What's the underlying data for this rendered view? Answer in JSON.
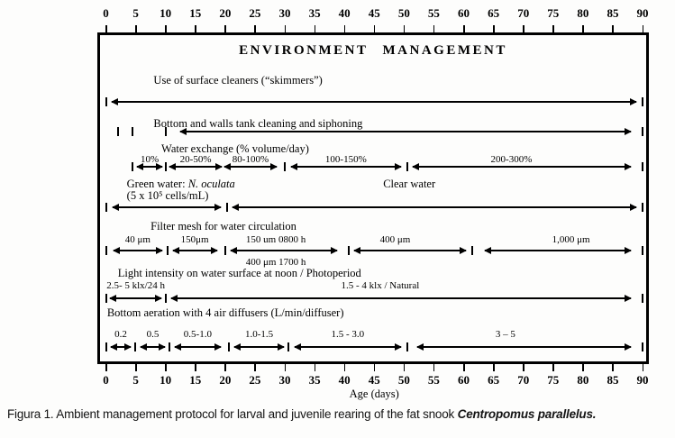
{
  "chart_data": {
    "type": "table",
    "title": "ENVIRONMENT MANAGEMENT",
    "xlabel": "Age (days)",
    "xlim": [
      0,
      90
    ],
    "x_ticks": [
      0,
      5,
      10,
      15,
      20,
      25,
      30,
      35,
      40,
      45,
      50,
      55,
      60,
      65,
      70,
      75,
      80,
      85,
      90
    ],
    "rows": [
      {
        "name": "surface-cleaners",
        "titles": [
          {
            "day": 8,
            "lines": [
              [
                {
                  "t": "Use of surface cleaners (“skimmers”)"
                }
              ]
            ]
          }
        ],
        "bars": [
          0,
          90
        ],
        "segments": [
          {
            "from": 1,
            "to": 89
          }
        ]
      },
      {
        "name": "tank-cleaning",
        "titles": [
          {
            "day": 8,
            "lines": [
              [
                {
                  "t": "Bottom and walls tank cleaning and siphoning"
                }
              ]
            ]
          }
        ],
        "bars": [
          2,
          4.5,
          10,
          90
        ],
        "segments": [
          {
            "from": 12.5,
            "to": 88
          }
        ]
      },
      {
        "name": "water-exchange",
        "titles": [
          {
            "day": 9.3,
            "lines": [
              [
                {
                  "t": "Water exchange (% volume/day)"
                }
              ]
            ]
          }
        ],
        "bars": [
          4.5,
          10,
          30,
          50.5,
          90
        ],
        "segments": [
          {
            "from": 5.2,
            "to": 9.5,
            "label": "10%"
          },
          {
            "from": 10.7,
            "to": 19.4,
            "label": "20-50%"
          },
          {
            "from": 19.8,
            "to": 28.7,
            "label": "80-100%"
          },
          {
            "from": 31,
            "to": 49.5,
            "label": "100-150%"
          },
          {
            "from": 51.5,
            "to": 88,
            "label": "200-300%",
            "label_day": 68
          }
        ]
      },
      {
        "name": "water-type",
        "titles": [
          {
            "day": 3.5,
            "lines": [
              [
                {
                  "t": "Green water: "
                },
                {
                  "t": "N. oculata",
                  "i": true
                }
              ],
              [
                {
                  "t": "(5 x 10⁵ cells/mL)"
                }
              ]
            ]
          },
          {
            "day": 46.5,
            "lines": [
              [
                {
                  "t": "Clear water"
                }
              ]
            ]
          }
        ],
        "bars": [
          0,
          20.3,
          90
        ],
        "segments": [
          {
            "from": 1.2,
            "to": 19.3
          },
          {
            "from": 21.3,
            "to": 89
          }
        ]
      },
      {
        "name": "filter-mesh",
        "titles": [
          {
            "day": 7.5,
            "lines": [
              [
                {
                  "t": "Filter mesh for water circulation"
                }
              ]
            ]
          }
        ],
        "bars": [
          0,
          10.3,
          20,
          40.8,
          61.5,
          90
        ],
        "segments": [
          {
            "from": 1.3,
            "to": 9.4,
            "label": "40 μm"
          },
          {
            "from": 11.2,
            "to": 18.6,
            "label": "150μm"
          },
          {
            "from": 21,
            "to": 38.8,
            "label": "150 um 0800 h",
            "label_day": 28.5,
            "label_below": "400 μm 1700 h",
            "label_below_day": 28.5
          },
          {
            "from": 41.6,
            "to": 60.3,
            "label": "400 μm",
            "label_day": 48.5
          },
          {
            "from": 63.5,
            "to": 88,
            "label": "1,000 μm",
            "label_day": 78
          }
        ]
      },
      {
        "name": "light-photoperiod",
        "titles": [
          {
            "day": 2,
            "lines": [
              [
                {
                  "t": "Light intensity on water surface at noon / Photoperiod"
                }
              ]
            ]
          }
        ],
        "bars": [
          0,
          10,
          90
        ],
        "segments": [
          {
            "from": 0.7,
            "to": 9.3,
            "label": "2.5- 5  klx/24 h"
          },
          {
            "from": 11,
            "to": 88,
            "label": "1.5 - 4  klx / Natural",
            "label_day": 46
          }
        ]
      },
      {
        "name": "bottom-aeration",
        "titles": [
          {
            "day": 0.2,
            "lines": [
              [
                {
                  "t": "Bottom aeration with 4 air diffusers (L/min/diffuser)"
                }
              ]
            ]
          }
        ],
        "bars": [
          0,
          4.9,
          10.6,
          20.7,
          30.6,
          50.6,
          90
        ],
        "segments": [
          {
            "from": 0.8,
            "to": 4.2,
            "label": "0.2"
          },
          {
            "from": 5.8,
            "to": 9.9,
            "label": "0.5"
          },
          {
            "from": 11.6,
            "to": 19.2,
            "label": "0.5-1.0"
          },
          {
            "from": 21.6,
            "to": 29.8,
            "label": "1.0-1.5"
          },
          {
            "from": 31.6,
            "to": 49.5,
            "label": "1.5 - 3.0"
          },
          {
            "from": 52.2,
            "to": 88,
            "label": "3 – 5",
            "label_day": 67
          }
        ]
      }
    ]
  },
  "caption": {
    "parts": [
      {
        "t": "Figura 1. Ambient management protocol for larval and juvenile rearing of the fat snook "
      },
      {
        "t": "Centropomus parallelus.",
        "b": true,
        "i": true
      }
    ]
  }
}
